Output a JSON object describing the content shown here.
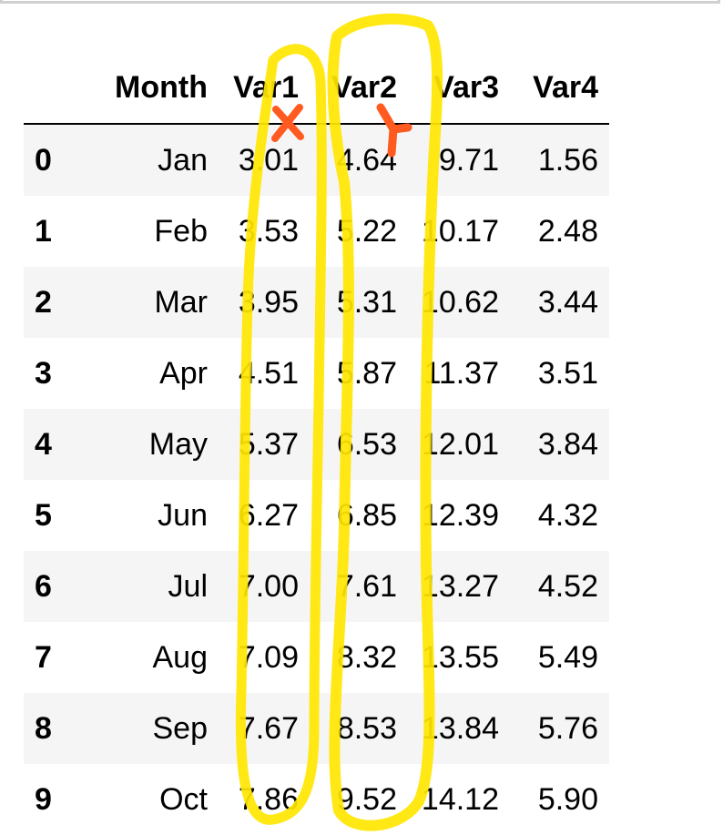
{
  "table": {
    "columns": [
      "",
      "Month",
      "Var1",
      "Var2",
      "Var3",
      "Var4"
    ],
    "rows": [
      {
        "index": "0",
        "month": "Jan",
        "var1": "3.01",
        "var2": "4.64",
        "var3": "9.71",
        "var4": "1.56"
      },
      {
        "index": "1",
        "month": "Feb",
        "var1": "3.53",
        "var2": "5.22",
        "var3": "10.17",
        "var4": "2.48"
      },
      {
        "index": "2",
        "month": "Mar",
        "var1": "3.95",
        "var2": "5.31",
        "var3": "10.62",
        "var4": "3.44"
      },
      {
        "index": "3",
        "month": "Apr",
        "var1": "4.51",
        "var2": "5.87",
        "var3": "11.37",
        "var4": "3.51"
      },
      {
        "index": "4",
        "month": "May",
        "var1": "5.37",
        "var2": "6.53",
        "var3": "12.01",
        "var4": "3.84"
      },
      {
        "index": "5",
        "month": "Jun",
        "var1": "6.27",
        "var2": "6.85",
        "var3": "12.39",
        "var4": "4.32"
      },
      {
        "index": "6",
        "month": "Jul",
        "var1": "7.00",
        "var2": "7.61",
        "var3": "13.27",
        "var4": "4.52"
      },
      {
        "index": "7",
        "month": "Aug",
        "var1": "7.09",
        "var2": "8.32",
        "var3": "13.55",
        "var4": "5.49"
      },
      {
        "index": "8",
        "month": "Sep",
        "var1": "7.67",
        "var2": "8.53",
        "var3": "13.84",
        "var4": "5.76"
      },
      {
        "index": "9",
        "month": "Oct",
        "var1": "7.86",
        "var2": "9.52",
        "var3": "14.12",
        "var4": "5.90"
      }
    ]
  },
  "annotations": {
    "highlight_color": "#ffe600",
    "mark_color": "#ff5a1f",
    "var1_mark": "x",
    "var2_mark": "y"
  }
}
